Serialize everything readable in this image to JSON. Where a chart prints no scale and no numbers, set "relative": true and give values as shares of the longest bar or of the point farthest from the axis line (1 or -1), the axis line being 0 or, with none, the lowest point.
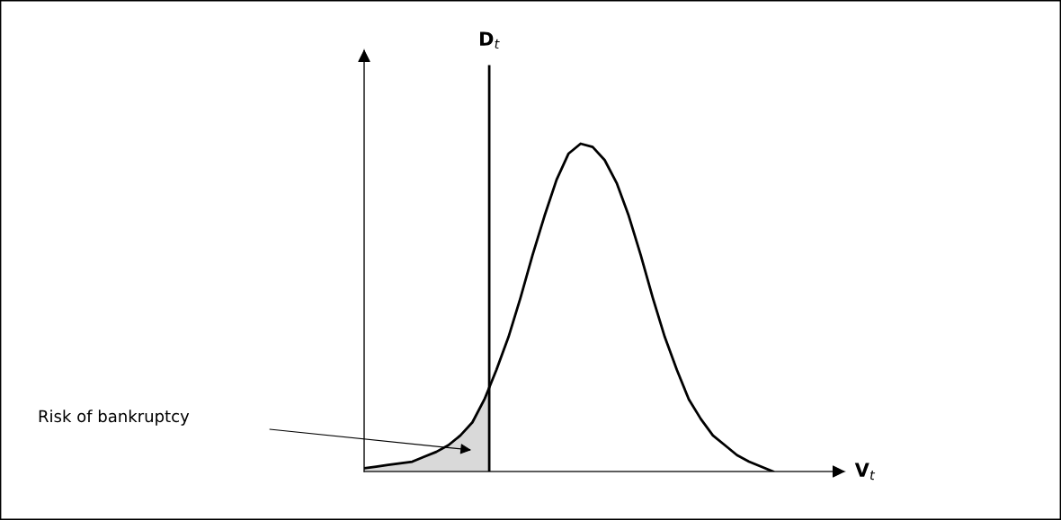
{
  "chart_data": {
    "type": "line",
    "relative": true,
    "xlabel": "V$_{t}$",
    "tick_labels": false,
    "categories": [
      null,
      null,
      null,
      null,
      null,
      null,
      null,
      null,
      null,
      null,
      null,
      null,
      null,
      null,
      null,
      null,
      null,
      null,
      null,
      null,
      null,
      null,
      null,
      null,
      null,
      null,
      null,
      null,
      null,
      null,
      null,
      null,
      null,
      null,
      null
    ],
    "series": [
      {
        "color": "#000000",
        "values": [
          0.01,
          0.015,
          0.02,
          0.025,
          0.03,
          0.045,
          0.06,
          0.08,
          0.11,
          0.15,
          0.22,
          0.31,
          0.41,
          0.53,
          0.66,
          0.78,
          0.89,
          0.97,
          1,
          0.99,
          0.95,
          0.88,
          0.78,
          0.66,
          0.53,
          0.41,
          0.31,
          0.22,
          0.16,
          0.11,
          0.08,
          0.05,
          0.03,
          0.015,
          0
        ]
      }
    ],
    "annotations": [
      "D$_{t}$",
      "Risk of bankruptcy"
    ]
  }
}
